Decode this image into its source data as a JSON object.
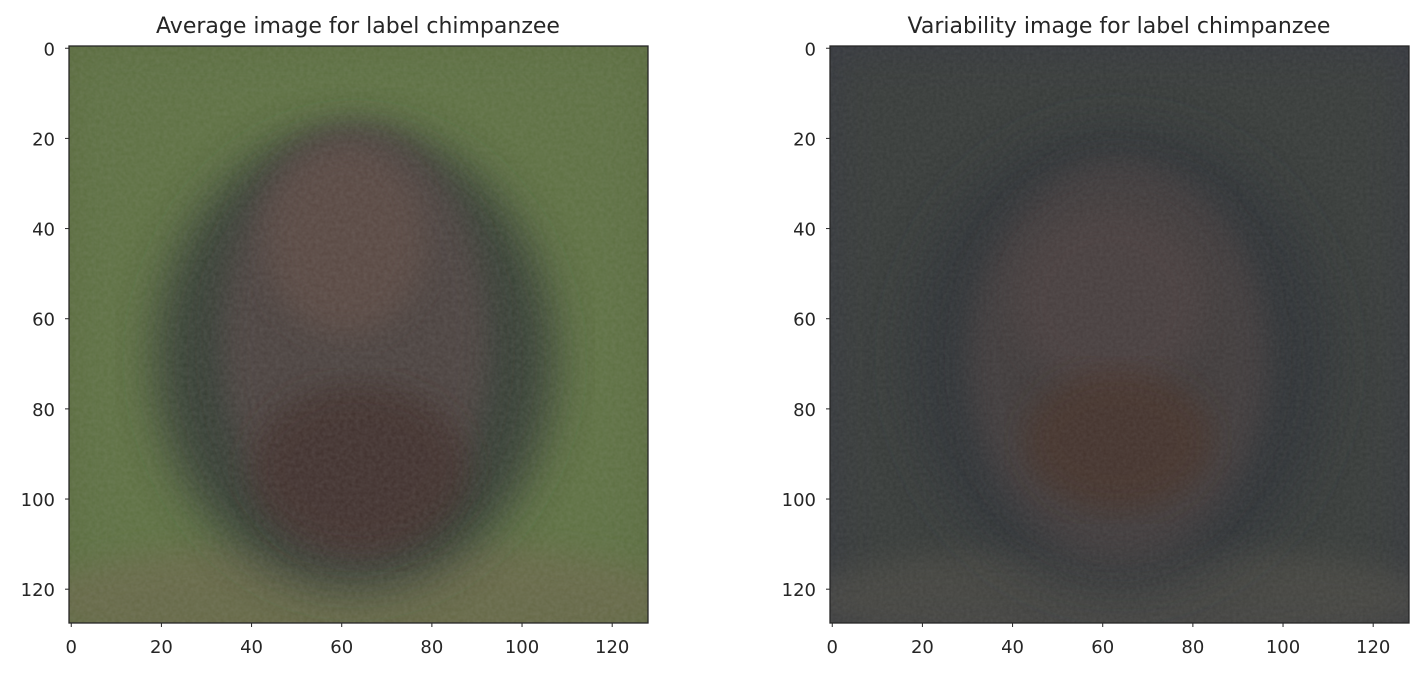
{
  "chart_data": [
    {
      "type": "heatmap",
      "title": "Average image for label chimpanzee",
      "xlabel": "",
      "ylabel": "",
      "xlim": [
        0,
        127
      ],
      "ylim": [
        127,
        0
      ],
      "x_ticks": [
        0,
        20,
        40,
        60,
        80,
        100,
        120
      ],
      "y_ticks": [
        0,
        20,
        40,
        60,
        80,
        100,
        120
      ],
      "grid": false,
      "image": {
        "background_color": "#57683a",
        "edge_color": "#657a4c",
        "subject_color": "#4d4341",
        "dark_ring_color": "#2f3633",
        "face_color": "#5c4942",
        "mouth_color": "#3e2c26",
        "ground_color": "#6b6648"
      }
    },
    {
      "type": "heatmap",
      "title": "Variability image for label chimpanzee",
      "xlabel": "",
      "ylabel": "",
      "xlim": [
        0,
        127
      ],
      "ylim": [
        127,
        0
      ],
      "x_ticks": [
        0,
        20,
        40,
        60,
        80,
        100,
        120
      ],
      "y_ticks": [
        0,
        20,
        40,
        60,
        80,
        100,
        120
      ],
      "grid": false,
      "image": {
        "background_color": "#33353e",
        "edge_color": "#3f4633",
        "subject_color": "#453d3c",
        "dark_ring_color": "#2b2f34",
        "face_color": "#4b4140",
        "mouth_color": "#4a2e24",
        "ground_color": "#4e4c45"
      }
    }
  ]
}
